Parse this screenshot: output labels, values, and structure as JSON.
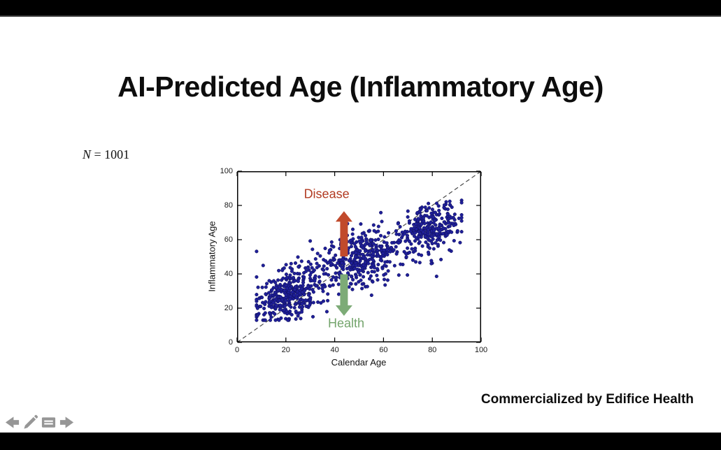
{
  "slide": {
    "title": "AI-Predicted Age (Inflammatory Age)",
    "sample_size_prefix": "N",
    "sample_size_rest": " = 1001",
    "credit": "Commercialized by Edifice Health"
  },
  "toolbar": {
    "icons": [
      "back-arrow",
      "pencil",
      "notes",
      "forward-arrow"
    ]
  },
  "chart_data": {
    "type": "scatter",
    "title": "",
    "xlabel": "Calendar Age",
    "ylabel": "Inflammatory Age",
    "xlim": [
      0,
      100
    ],
    "ylim": [
      0,
      100
    ],
    "xticks": [
      0,
      20,
      40,
      60,
      80,
      100
    ],
    "yticks": [
      0,
      20,
      40,
      60,
      80,
      100
    ],
    "grid": false,
    "n_points": 1001,
    "point_color": "#1f1f99",
    "point_edge_color": "#0e0e55",
    "identity_line": {
      "from": [
        0,
        0
      ],
      "to": [
        100,
        100
      ],
      "style": "dashed",
      "color": "#4a4a4a"
    },
    "annotations": [
      {
        "text": "Disease",
        "color": "#b23b22",
        "x": 36.7,
        "y": 86.5
      },
      {
        "text": "Health",
        "color": "#74a46c",
        "x": 44.7,
        "y": 11.0
      }
    ],
    "arrows": [
      {
        "direction": "up",
        "color": "#c14a2c",
        "x": 43.8,
        "y_from": 50.2,
        "y_to": 76.6
      },
      {
        "direction": "down",
        "color": "#7dab77",
        "x": 43.8,
        "y_from": 39.8,
        "y_to": 15.5
      }
    ],
    "generator": {
      "seed": 7,
      "n": 1001,
      "clusters": [
        {
          "weight": 0.36,
          "cx": 22,
          "cy": 28,
          "sx": 6.5,
          "sy": 8.0,
          "corr": 0.35
        },
        {
          "weight": 0.33,
          "cx": 51,
          "cy": 50,
          "sx": 8.0,
          "sy": 8.5,
          "corr": 0.3
        },
        {
          "weight": 0.25,
          "cx": 79,
          "cy": 67,
          "sx": 6.0,
          "sy": 7.0,
          "corr": 0.3
        },
        {
          "weight": 0.06,
          "cx": 48,
          "cy": 47,
          "sx": 22.0,
          "sy": 13.0,
          "corr": 0.55
        }
      ],
      "x_clip": [
        8,
        92
      ],
      "y_clip": [
        13,
        83
      ]
    }
  }
}
